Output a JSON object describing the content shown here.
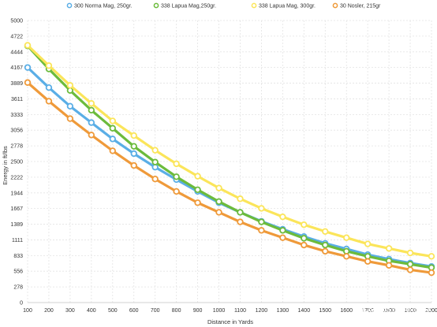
{
  "chart_data": {
    "type": "line",
    "xlabel": "Distance in Yards",
    "ylabel": "Energy in ft/lbs",
    "x": [
      100,
      200,
      300,
      400,
      500,
      600,
      700,
      800,
      900,
      1000,
      1100,
      1200,
      1300,
      1400,
      1500,
      1600,
      1700,
      1800,
      1900,
      2000
    ],
    "x_ticks": [
      "100",
      "200",
      "300",
      "400",
      "500",
      "600",
      "700",
      "800",
      "900",
      "1000",
      "1100",
      "1200",
      "1300",
      "1400",
      "1500",
      "1600",
      "1700",
      "1800",
      "1900",
      "2000"
    ],
    "y_ticks": [
      "0",
      "278",
      "556",
      "833",
      "1111",
      "1389",
      "1667",
      "1944",
      "2222",
      "2500",
      "2778",
      "3056",
      "3333",
      "3611",
      "3889",
      "4167",
      "4444",
      "4722",
      "5000"
    ],
    "ylim": [
      0,
      5000
    ],
    "xlim": [
      100,
      2000
    ],
    "grid": true,
    "legend_position": "top",
    "series": [
      {
        "name": "300 Norma Mag, 250gr.",
        "color": "#5aaee6",
        "values": [
          4167,
          3810,
          3480,
          3190,
          2900,
          2640,
          2400,
          2180,
          1970,
          1770,
          1600,
          1440,
          1300,
          1170,
          1050,
          950,
          850,
          770,
          700,
          640
        ]
      },
      {
        "name": "338 Lapua Mag,250gr.",
        "color": "#6cbb3c",
        "values": [
          4550,
          4140,
          3760,
          3410,
          3090,
          2770,
          2490,
          2230,
          2000,
          1790,
          1600,
          1430,
          1280,
          1140,
          1020,
          910,
          820,
          740,
          680,
          620
        ]
      },
      {
        "name": "338 Lapua Mag, 300gr.",
        "color": "#fbe55a",
        "values": [
          4560,
          4200,
          3850,
          3530,
          3220,
          2960,
          2700,
          2460,
          2240,
          2030,
          1840,
          1670,
          1520,
          1380,
          1260,
          1150,
          1040,
          960,
          880,
          820
        ]
      },
      {
        "name": "30 Nosler, 215gr",
        "color": "#ef9a3a",
        "values": [
          3900,
          3570,
          3260,
          2970,
          2690,
          2430,
          2190,
          1970,
          1770,
          1600,
          1430,
          1280,
          1150,
          1020,
          910,
          820,
          730,
          660,
          580,
          530
        ]
      }
    ]
  },
  "watermark": "头条 @尖端防务"
}
